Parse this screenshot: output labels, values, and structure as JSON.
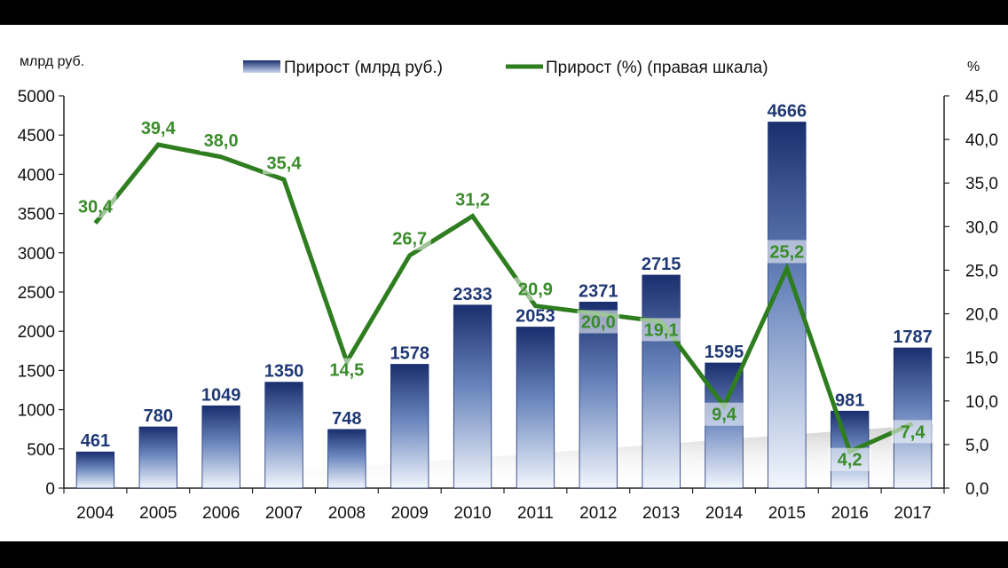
{
  "colors": {
    "bar_dark": "#1a2f6e",
    "bar_light": "#f2f6fd",
    "line": "#2e7d1f",
    "line_label": "#3a8c2a",
    "bar_label": "#1f3875"
  },
  "chart_data": {
    "type": "bar",
    "categories": [
      "2004",
      "2005",
      "2006",
      "2007",
      "2008",
      "2009",
      "2010",
      "2011",
      "2012",
      "2013",
      "2014",
      "2015",
      "2016",
      "2017"
    ],
    "series": [
      {
        "name": "Прирост (млрд руб.)",
        "type": "bar",
        "axis": "left",
        "values": [
          461,
          780,
          1049,
          1350,
          748,
          1578,
          2333,
          2053,
          2371,
          2715,
          1595,
          4666,
          981,
          1787
        ],
        "labels": [
          "461",
          "780",
          "1049",
          "1350",
          "748",
          "1578",
          "2333",
          "2053",
          "2371",
          "2715",
          "1595",
          "4666",
          "981",
          "1787"
        ]
      },
      {
        "name": "Прирост (%) (правая шкала)",
        "type": "line",
        "axis": "right",
        "values": [
          30.4,
          39.4,
          38.0,
          35.4,
          14.5,
          26.7,
          31.2,
          20.9,
          20.0,
          19.1,
          9.4,
          25.2,
          4.2,
          7.4
        ],
        "labels": [
          "30,4",
          "39,4",
          "38,0",
          "35,4",
          "14,5",
          "26,7",
          "31,2",
          "20,9",
          "20,0",
          "19,1",
          "9,4",
          "25,2",
          "4,2",
          "7,4"
        ]
      }
    ],
    "left_axis": {
      "unit": "млрд руб.",
      "ylim": [
        0,
        5000
      ],
      "ticks": [
        "0",
        "500",
        "1000",
        "1500",
        "2000",
        "2500",
        "3000",
        "3500",
        "4000",
        "4500",
        "5000"
      ]
    },
    "right_axis": {
      "unit": "%",
      "ylim": [
        0,
        45
      ],
      "ticks": [
        "0,0",
        "5,0",
        "10,0",
        "15,0",
        "20,0",
        "25,0",
        "30,0",
        "35,0",
        "40,0",
        "45,0"
      ]
    },
    "grid": false,
    "legend_position": "top"
  }
}
